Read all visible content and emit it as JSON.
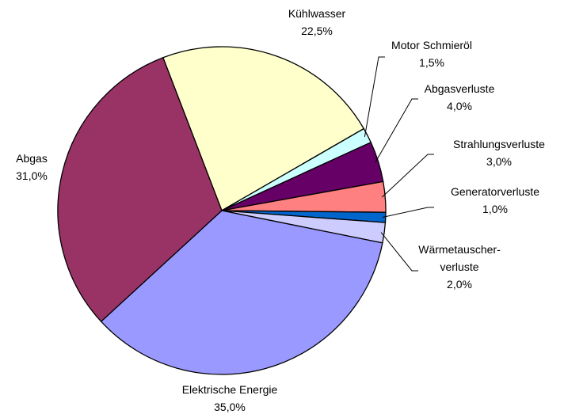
{
  "chart_data": {
    "type": "pie",
    "categories": [
      "Kühlwasser",
      "Motor Schmieröl",
      "Abgasverluste",
      "Strahlungsverluste",
      "Generatorverluste",
      "Wärmetauscher-\nverluste",
      "Elektrische Energie",
      "Abgas"
    ],
    "values": [
      22.5,
      1.5,
      4.0,
      3.0,
      1.0,
      2.0,
      35.0,
      31.0
    ],
    "value_labels": [
      "22,5%",
      "1,5%",
      "4,0%",
      "3,0%",
      "1,0%",
      "2,0%",
      "35,0%",
      "31,0%"
    ],
    "colors": [
      "#ffffcc",
      "#ccffff",
      "#660066",
      "#ff8080",
      "#0066cc",
      "#ccccff",
      "#9999ff",
      "#993366"
    ]
  }
}
